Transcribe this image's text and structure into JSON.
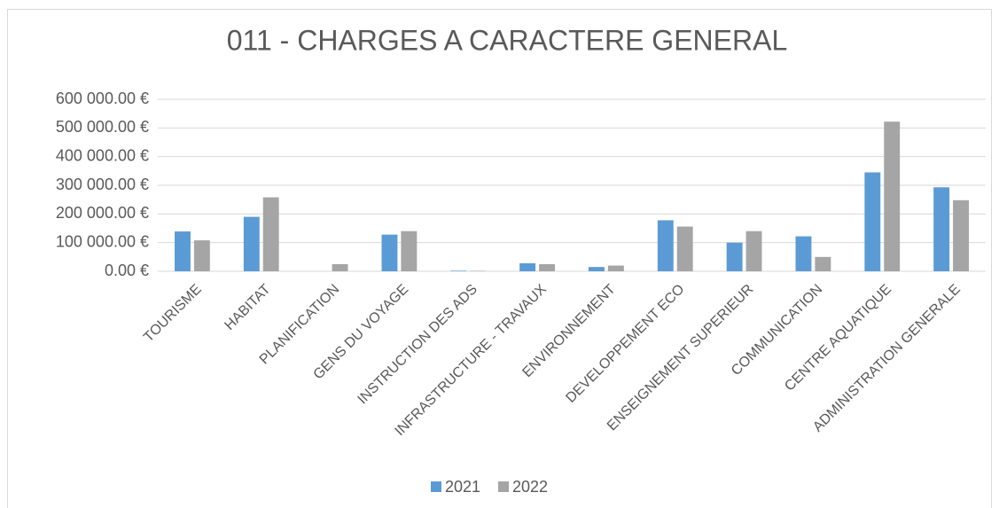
{
  "chart_data": {
    "type": "bar",
    "title": "011 - CHARGES A CARACTERE GENERAL",
    "categories": [
      "TOURISME",
      "HABITAT",
      "PLANIFICATION",
      "GENS DU VOYAGE",
      "INSTRUCTION DES ADS",
      "INFRASTRUCTURE - TRAVAUX",
      "ENVIRONNEMENT",
      "DEVELOPPEMENT ECO",
      "ENSEIGNEMENT SUPERIEUR",
      "COMMUNICATION",
      "CENTRE AQUATIQUE",
      "ADMINISTRATION GENERALE"
    ],
    "series": [
      {
        "name": "2021",
        "color": "#5b9bd5",
        "values": [
          139000,
          190000,
          0,
          128000,
          2000,
          28000,
          15000,
          178000,
          100000,
          122000,
          345000,
          293000
        ]
      },
      {
        "name": "2022",
        "color": "#a5a5a5",
        "values": [
          108000,
          258000,
          25000,
          140000,
          1500,
          25000,
          20000,
          156000,
          140000,
          50000,
          522000,
          248000
        ]
      }
    ],
    "ylim": [
      0,
      600000
    ],
    "yticks": [
      {
        "value": 0,
        "label": "0.00 €"
      },
      {
        "value": 100000,
        "label": "100 000.00 €"
      },
      {
        "value": 200000,
        "label": "200 000.00 €"
      },
      {
        "value": 300000,
        "label": "300 000.00 €"
      },
      {
        "value": 400000,
        "label": "400 000.00 €"
      },
      {
        "value": 500000,
        "label": "500 000.00 €"
      },
      {
        "value": 600000,
        "label": "600 000.00 €"
      }
    ],
    "grid": true,
    "legend": "bottom"
  }
}
